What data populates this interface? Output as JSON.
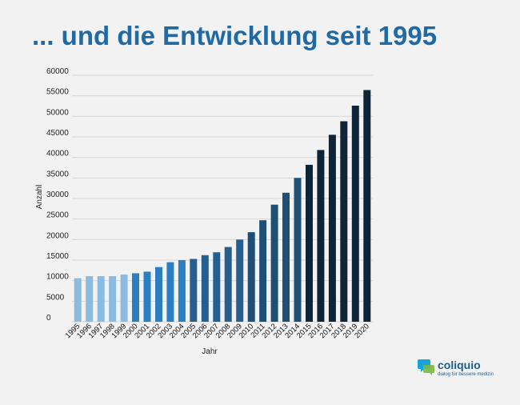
{
  "title": "... und die Entwicklung seit 1995",
  "chart_data": {
    "type": "bar",
    "xlabel": "Jahr",
    "ylabel": "Anzahl",
    "ylim": [
      0,
      60000
    ],
    "yticks": [
      0,
      5000,
      10000,
      15000,
      20000,
      25000,
      30000,
      35000,
      40000,
      45000,
      50000,
      55000,
      60000
    ],
    "grid": true,
    "categories": [
      "1995",
      "1996",
      "1997",
      "1998",
      "1999",
      "2000",
      "2001",
      "2002",
      "2003",
      "2004",
      "2005",
      "2006",
      "2007",
      "2008",
      "2009",
      "2010",
      "2011",
      "2012",
      "2013",
      "2014",
      "2015",
      "2016",
      "2017",
      "2018",
      "2019",
      "2020"
    ],
    "values": [
      10600,
      11100,
      11100,
      11100,
      11500,
      11800,
      12200,
      13300,
      14500,
      15000,
      15300,
      16200,
      16900,
      18200,
      20000,
      21800,
      24700,
      28500,
      31400,
      35000,
      38200,
      41800,
      45500,
      48800,
      52600,
      56400
    ],
    "colors": [
      "#8bbbe1",
      "#8bbbe1",
      "#8bbbe1",
      "#8bbbe1",
      "#8bbbe1",
      "#2b7fc1",
      "#2b7fc1",
      "#2b7fc1",
      "#2b7fc1",
      "#2b7fc1",
      "#245f8f",
      "#245f8f",
      "#245f8f",
      "#245f8f",
      "#245f8f",
      "#1e4f74",
      "#1e4f74",
      "#1e4f74",
      "#1e4f74",
      "#1e4f74",
      "#0f2537",
      "#0f2537",
      "#0f2537",
      "#0f2537",
      "#0f2537",
      "#0f2537"
    ]
  },
  "logo": {
    "name": "coliquio",
    "tagline": "dialog für bessere medizin",
    "colors": [
      "#1aa3d9",
      "#7ab840"
    ]
  }
}
